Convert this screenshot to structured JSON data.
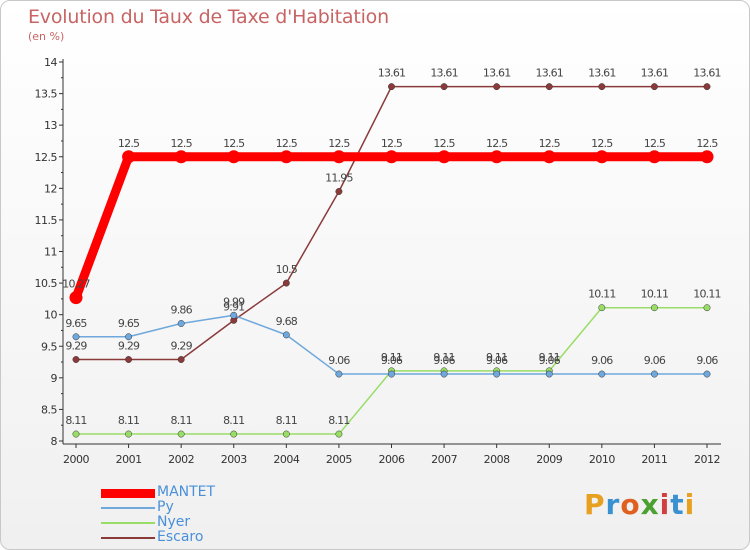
{
  "header": {
    "title": "Evolution du Taux de Taxe d'Habitation",
    "subtitle": "(en %)"
  },
  "logo": {
    "letters": [
      "P",
      "r",
      "o",
      "x",
      "i",
      "t",
      "i"
    ],
    "colors": [
      "#e8a020",
      "#3a90d0",
      "#e06020",
      "#4aa030",
      "#d04040",
      "#3a90d0",
      "#e8a020"
    ]
  },
  "chart_data": {
    "type": "line",
    "title": "Evolution du Taux de Taxe d'Habitation",
    "subtitle": "(en %)",
    "xlabel": "",
    "ylabel": "",
    "x": [
      "2000",
      "2001",
      "2002",
      "2003",
      "2004",
      "2005",
      "2006",
      "2007",
      "2008",
      "2009",
      "2010",
      "2011",
      "2012"
    ],
    "ylim": [
      8,
      14
    ],
    "yticks": [
      "8",
      "8.5",
      "9",
      "9.5",
      "10",
      "10.5",
      "11",
      "11.5",
      "12",
      "12.5",
      "13",
      "13.5",
      "14"
    ],
    "grid": false,
    "legend": "bottom-left",
    "series": [
      {
        "name": "MANTET",
        "color": "#ff0000",
        "values": [
          10.27,
          12.5,
          12.5,
          12.5,
          12.5,
          12.5,
          12.5,
          12.5,
          12.5,
          12.5,
          12.5,
          12.5,
          12.5
        ],
        "labels": [
          "10.27",
          "12.5",
          "12.5",
          "12.5",
          "12.5",
          "12.5",
          "12.5",
          "12.5",
          "12.5",
          "12.5",
          "12.5",
          "12.5",
          "12.5"
        ]
      },
      {
        "name": "Py",
        "color": "#6fa8dc",
        "values": [
          9.65,
          9.65,
          9.86,
          9.99,
          9.68,
          9.06,
          9.06,
          9.06,
          9.06,
          9.06,
          9.06,
          9.06,
          9.06
        ],
        "labels": [
          "9.65",
          "9.65",
          "9.86",
          "9.99",
          "9.68",
          "9.06",
          "9.06",
          "9.06",
          "9.06",
          "9.06",
          "9.06",
          "9.06",
          "9.06"
        ]
      },
      {
        "name": "Nyer",
        "color": "#99dd66",
        "values": [
          8.11,
          8.11,
          8.11,
          8.11,
          8.11,
          8.11,
          9.11,
          9.11,
          9.11,
          9.11,
          10.11,
          10.11,
          10.11
        ],
        "labels": [
          "8.11",
          "8.11",
          "8.11",
          "8.11",
          "8.11",
          "8.11",
          "9.11",
          "9.11",
          "9.11",
          "9.11",
          "10.11",
          "10.11",
          "10.11"
        ]
      },
      {
        "name": "Escaro",
        "color": "#8b3a3a",
        "values": [
          9.29,
          9.29,
          9.29,
          9.91,
          10.5,
          11.95,
          13.61,
          13.61,
          13.61,
          13.61,
          13.61,
          13.61,
          13.61
        ],
        "labels": [
          "9.29",
          "9.29",
          "9.29",
          "9.91",
          "10.5",
          "11.95",
          "13.61",
          "13.61",
          "13.61",
          "13.61",
          "13.61",
          "13.61",
          "13.61"
        ]
      }
    ]
  }
}
